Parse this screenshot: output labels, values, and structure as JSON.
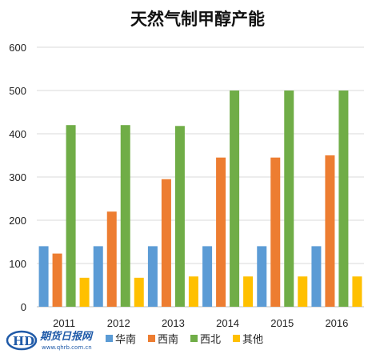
{
  "chart_data": {
    "type": "bar",
    "title": "天然气制甲醇产能",
    "categories": [
      "2011",
      "2012",
      "2013",
      "2014",
      "2015",
      "2016"
    ],
    "series": [
      {
        "name": "华南",
        "color": "#5b9bd5",
        "values": [
          140,
          140,
          140,
          140,
          140,
          140
        ]
      },
      {
        "name": "西南",
        "color": "#ed7d31",
        "values": [
          123,
          220,
          295,
          345,
          345,
          350
        ]
      },
      {
        "name": "西北",
        "color": "#70ad47",
        "values": [
          420,
          420,
          418,
          500,
          500,
          500
        ]
      },
      {
        "name": "其他",
        "color": "#ffc000",
        "values": [
          67,
          67,
          70,
          70,
          70,
          70
        ]
      }
    ],
    "yticks": [
      0,
      100,
      200,
      300,
      400,
      500,
      600
    ],
    "ylim": [
      0,
      600
    ],
    "grid": true,
    "legend_position": "bottom"
  },
  "watermark": {
    "logo_text": "期货日报网",
    "url": "www.qhrb.com.cn"
  }
}
